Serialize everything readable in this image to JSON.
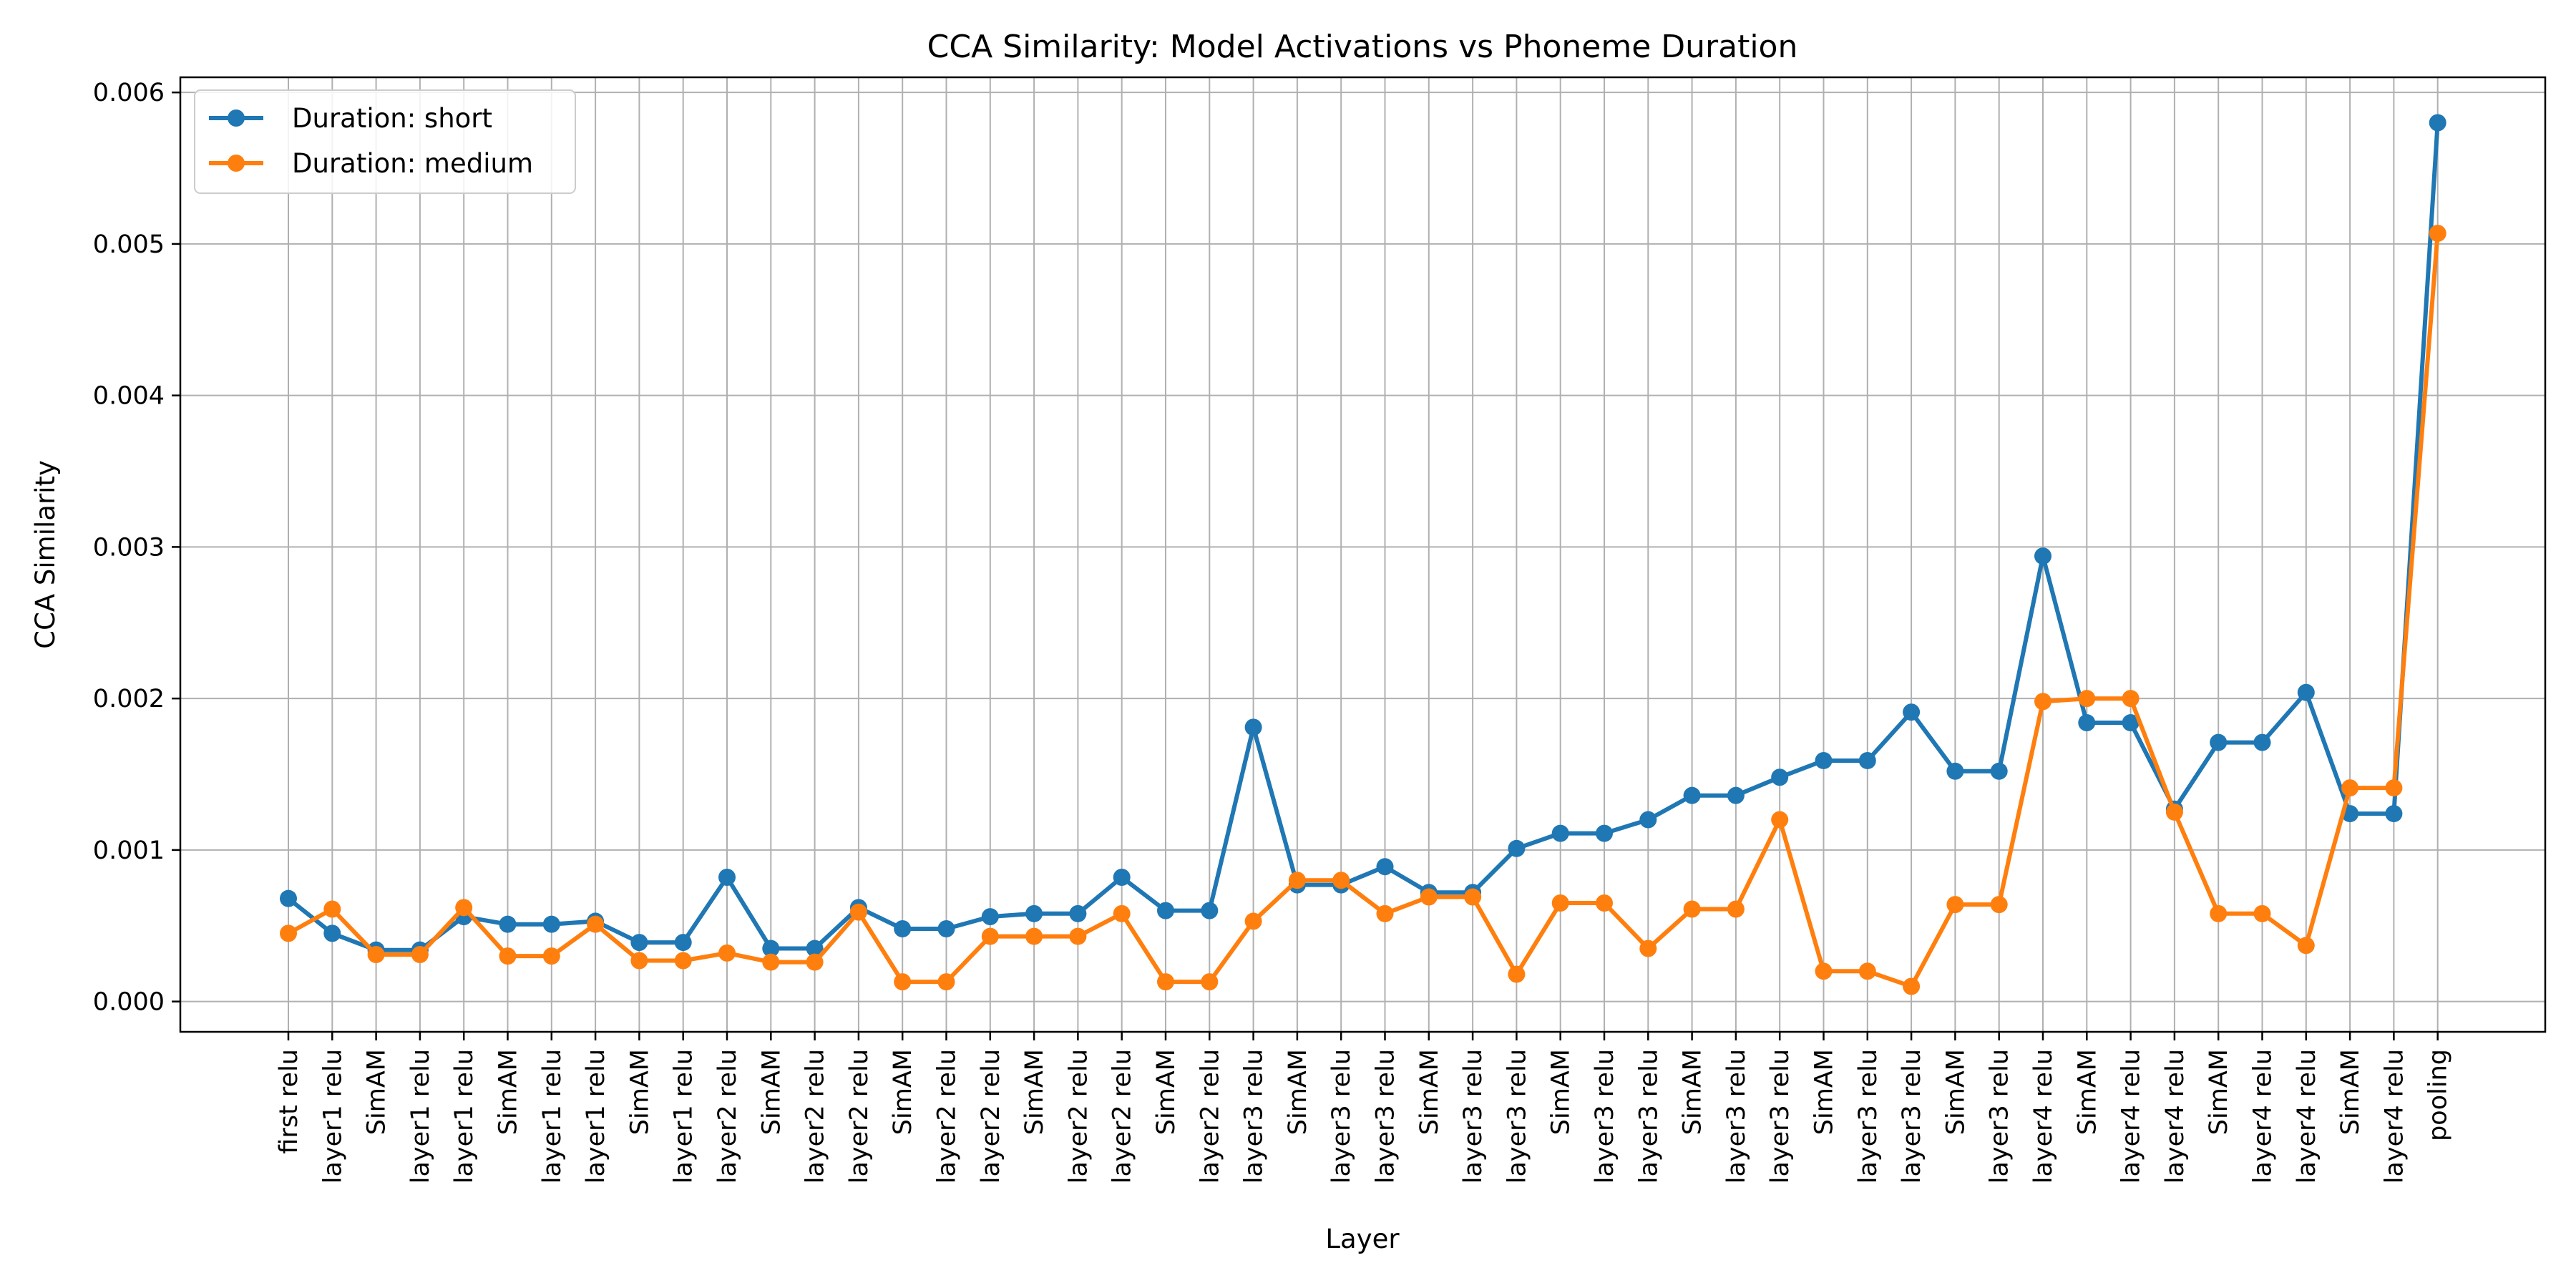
{
  "chart_data": {
    "type": "line",
    "title": "CCA Similarity: Model Activations vs Phoneme Duration",
    "xlabel": "Layer",
    "ylabel": "CCA Similarity",
    "ylim": [
      -0.0002,
      0.0061
    ],
    "yticks": [
      "0.000",
      "0.001",
      "0.002",
      "0.003",
      "0.004",
      "0.005",
      "0.006"
    ],
    "grid": true,
    "legend_position": "top-left",
    "categories": [
      "first relu",
      "layer1 relu",
      "SimAM",
      "layer1 relu",
      "layer1 relu",
      "SimAM",
      "layer1 relu",
      "layer1 relu",
      "SimAM",
      "layer1 relu",
      "layer2 relu",
      "SimAM",
      "layer2 relu",
      "layer2 relu",
      "SimAM",
      "layer2 relu",
      "layer2 relu",
      "SimAM",
      "layer2 relu",
      "layer2 relu",
      "SimAM",
      "layer2 relu",
      "layer3 relu",
      "SimAM",
      "layer3 relu",
      "layer3 relu",
      "SimAM",
      "layer3 relu",
      "layer3 relu",
      "SimAM",
      "layer3 relu",
      "layer3 relu",
      "SimAM",
      "layer3 relu",
      "layer3 relu",
      "SimAM",
      "layer3 relu",
      "layer3 relu",
      "SimAM",
      "layer3 relu",
      "layer4 relu",
      "SimAM",
      "layer4 relu",
      "layer4 relu",
      "SimAM",
      "layer4 relu",
      "layer4 relu",
      "SimAM",
      "layer4 relu",
      "pooling"
    ],
    "series": [
      {
        "name": "Duration: short",
        "color": "#1f77b4",
        "values": [
          0.00068,
          0.00045,
          0.00034,
          0.00034,
          0.00056,
          0.00051,
          0.00051,
          0.00053,
          0.00039,
          0.00039,
          0.00082,
          0.00035,
          0.00035,
          0.00062,
          0.00048,
          0.00048,
          0.00056,
          0.00058,
          0.00058,
          0.00082,
          0.0006,
          0.0006,
          0.00181,
          0.00077,
          0.00077,
          0.00089,
          0.00072,
          0.00072,
          0.00101,
          0.00111,
          0.00111,
          0.0012,
          0.00136,
          0.00136,
          0.00148,
          0.00159,
          0.00159,
          0.00191,
          0.00152,
          0.00152,
          0.00294,
          0.00184,
          0.00184,
          0.00127,
          0.00171,
          0.00171,
          0.00204,
          0.00124,
          0.00124,
          0.0058
        ]
      },
      {
        "name": "Duration: medium",
        "color": "#ff7f0e",
        "values": [
          0.00045,
          0.00061,
          0.00031,
          0.00031,
          0.00062,
          0.0003,
          0.0003,
          0.00051,
          0.00027,
          0.00027,
          0.00032,
          0.00026,
          0.00026,
          0.00059,
          0.00013,
          0.00013,
          0.00043,
          0.00043,
          0.00043,
          0.00058,
          0.00013,
          0.00013,
          0.00053,
          0.0008,
          0.0008,
          0.00058,
          0.00069,
          0.00069,
          0.00018,
          0.00065,
          0.00065,
          0.00035,
          0.00061,
          0.00061,
          0.0012,
          0.0002,
          0.0002,
          0.0001,
          0.00064,
          0.00064,
          0.00198,
          0.002,
          0.002,
          0.00125,
          0.00058,
          0.00058,
          0.00037,
          0.00141,
          0.00141,
          0.00507
        ]
      }
    ]
  }
}
